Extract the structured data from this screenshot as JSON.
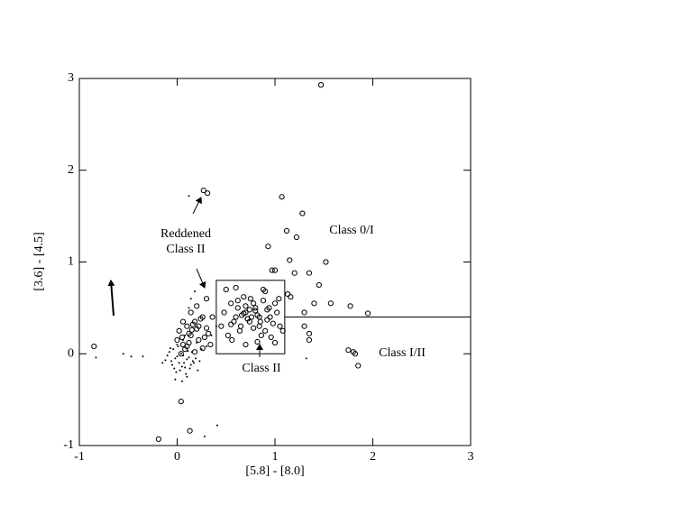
{
  "chart_data": {
    "type": "scatter",
    "xlabel": "[5.8] - [8.0]",
    "ylabel": "[3.6] - [4.5]",
    "xlim": [
      -1,
      3
    ],
    "ylim": [
      -1,
      3
    ],
    "xticks": [
      -1,
      0,
      1,
      2,
      3
    ],
    "yticks": [
      -1,
      0,
      1,
      2,
      3
    ],
    "annotations": [
      "Reddened",
      "Class II",
      "Class 0/I",
      "Class II",
      "Class I/II"
    ],
    "box": {
      "x": [
        0.4,
        1.1
      ],
      "y": [
        0,
        0.8
      ]
    },
    "boundary": {
      "x": [
        1.1,
        3
      ],
      "y": [
        0.4,
        0.4
      ]
    },
    "series": [
      {
        "marker": "circle",
        "color": "#000000",
        "x": [
          1.47,
          0.27,
          0.31,
          1.07,
          1.28,
          1.12,
          0.93,
          1.22,
          1.15,
          1.2,
          1.35,
          1.52,
          1.45,
          0.97,
          1.0,
          1.57,
          1.77,
          1.95,
          1.4,
          1.75,
          1.8,
          1.82,
          1.85,
          0.04,
          0.13,
          -0.19,
          -0.85,
          1.35,
          1.35,
          1.3,
          1.3,
          1.13,
          1.16,
          0.5,
          0.55,
          0.6,
          0.65,
          0.7,
          0.75,
          0.8,
          0.85,
          0.9,
          0.95,
          1.0,
          1.05,
          0.52,
          0.58,
          0.62,
          0.68,
          0.72,
          0.78,
          0.82,
          0.88,
          0.92,
          0.98,
          1.02,
          1.08,
          0.48,
          0.56,
          0.64,
          0.7,
          0.76,
          0.84,
          0.9,
          0.96,
          1.04,
          0.6,
          0.66,
          0.74,
          0.8,
          0.86,
          0.94,
          0.7,
          0.78,
          0.88,
          0.55,
          0.62,
          0.72,
          0.82,
          0.92,
          1.0,
          0.45,
          0.68,
          0.74,
          0.84,
          0.02,
          0.06,
          0.1,
          0.14,
          0.18,
          0.22,
          0.26,
          0.3,
          0.34,
          0.08,
          0.12,
          0.16,
          0.2,
          0.24,
          0.28,
          0.32,
          0.04,
          0.1,
          0.18,
          0.26,
          0.0,
          0.06,
          0.14,
          0.22,
          0.3,
          0.2,
          0.12,
          0.36,
          0.05,
          0.15
        ],
        "values": [
          2.93,
          1.78,
          1.75,
          1.71,
          1.53,
          1.34,
          1.17,
          1.27,
          1.02,
          0.88,
          0.88,
          1.0,
          0.75,
          0.91,
          0.91,
          0.55,
          0.52,
          0.44,
          0.55,
          0.04,
          0.02,
          0.0,
          -0.13,
          -0.52,
          -0.84,
          -0.93,
          0.08,
          0.22,
          0.15,
          0.45,
          0.3,
          0.65,
          0.62,
          0.7,
          0.55,
          0.4,
          0.3,
          0.45,
          0.6,
          0.5,
          0.35,
          0.25,
          0.4,
          0.55,
          0.3,
          0.2,
          0.35,
          0.5,
          0.62,
          0.38,
          0.28,
          0.42,
          0.58,
          0.48,
          0.33,
          0.45,
          0.25,
          0.45,
          0.15,
          0.25,
          0.52,
          0.4,
          0.3,
          0.68,
          0.18,
          0.6,
          0.72,
          0.42,
          0.35,
          0.47,
          0.2,
          0.5,
          0.1,
          0.55,
          0.7,
          0.32,
          0.58,
          0.38,
          0.13,
          0.37,
          0.12,
          0.3,
          0.44,
          0.48,
          0.4,
          0.25,
          0.1,
          0.3,
          0.2,
          0.35,
          0.15,
          0.4,
          0.28,
          0.1,
          0.05,
          0.22,
          0.32,
          0.27,
          0.38,
          0.18,
          0.22,
          0.0,
          0.08,
          0.02,
          0.06,
          0.15,
          0.35,
          0.45,
          0.3,
          0.6,
          0.52,
          0.12,
          0.4,
          0.18,
          0.26
        ]
      },
      {
        "marker": "dot",
        "color": "#000000",
        "x": [
          -0.83,
          -0.55,
          -0.47,
          -0.35,
          0.12,
          0.41,
          0.28,
          1.32,
          -0.1,
          -0.06,
          -0.02,
          0.02,
          0.06,
          0.1,
          0.14,
          -0.08,
          -0.04,
          0.0,
          0.04,
          0.08,
          0.12,
          0.16,
          -0.12,
          -0.05,
          0.03,
          0.07,
          0.11,
          -0.01,
          0.05,
          0.09,
          0.13,
          0.17,
          -0.07,
          -0.03,
          0.01,
          0.15,
          0.19,
          0.21,
          -0.15,
          0.23,
          0.1,
          0.0,
          0.06,
          0.2,
          0.25,
          0.3,
          0.35,
          0.4,
          0.12,
          0.18,
          0.05,
          -0.02,
          0.08,
          0.14
        ],
        "values": [
          -0.04,
          0.0,
          -0.03,
          -0.03,
          1.72,
          -0.78,
          -0.9,
          -0.05,
          -0.02,
          -0.08,
          -0.05,
          -0.1,
          -0.02,
          -0.06,
          -0.12,
          0.02,
          0.05,
          -0.03,
          0.0,
          -0.15,
          -0.04,
          -0.08,
          -0.07,
          -0.12,
          -0.18,
          -0.1,
          0.03,
          -0.2,
          -0.14,
          -0.22,
          -0.16,
          -0.1,
          0.06,
          -0.16,
          0.08,
          0.02,
          -0.05,
          -0.18,
          -0.1,
          -0.08,
          -0.25,
          0.1,
          0.15,
          0.12,
          0.05,
          0.08,
          0.2,
          0.3,
          0.5,
          0.68,
          -0.3,
          -0.28,
          0.2,
          0.6
        ]
      }
    ]
  }
}
